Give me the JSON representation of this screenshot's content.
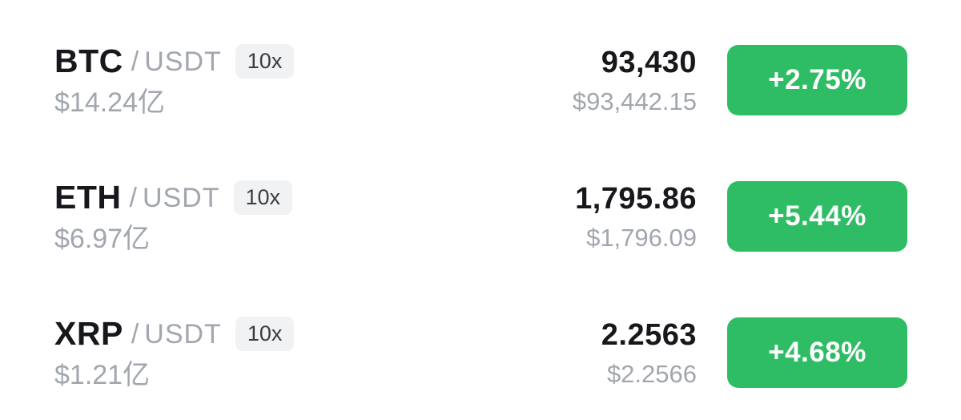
{
  "colors": {
    "background": "#ffffff",
    "up_green": "#2ebd64",
    "primary_text": "#17181c",
    "secondary_text": "#a2a6ae",
    "leverage_chip_bg": "#f1f2f4",
    "leverage_chip_text": "#3a3d42",
    "badge_text": "#ffffff"
  },
  "market_list": {
    "rows": [
      {
        "base": "BTC",
        "separator": "/",
        "quote": "USDT",
        "leverage": "10x",
        "volume": "$14.24亿",
        "last_price": "93,430",
        "fiat_price": "$93,442.15",
        "change": "+2.75%",
        "change_direction": "up"
      },
      {
        "base": "ETH",
        "separator": "/",
        "quote": "USDT",
        "leverage": "10x",
        "volume": "$6.97亿",
        "last_price": "1,795.86",
        "fiat_price": "$1,796.09",
        "change": "+5.44%",
        "change_direction": "up"
      },
      {
        "base": "XRP",
        "separator": "/",
        "quote": "USDT",
        "leverage": "10x",
        "volume": "$1.21亿",
        "last_price": "2.2563",
        "fiat_price": "$2.2566",
        "change": "+4.68%",
        "change_direction": "up"
      }
    ]
  }
}
